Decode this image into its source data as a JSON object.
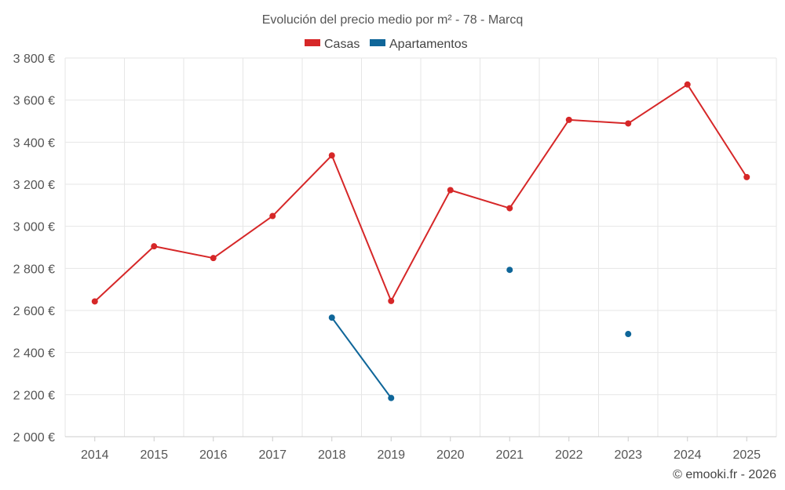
{
  "chart_data": {
    "type": "line",
    "title": "Evolución del precio medio por m² - 78 - Marcq",
    "xlabel": "",
    "ylabel": "",
    "x": [
      "2014",
      "2015",
      "2016",
      "2017",
      "2018",
      "2019",
      "2020",
      "2021",
      "2022",
      "2023",
      "2024",
      "2025"
    ],
    "yticks": [
      "2 000 €",
      "2 200 €",
      "2 400 €",
      "2 600 €",
      "2 800 €",
      "3 000 €",
      "3 200 €",
      "3 400 €",
      "3 600 €",
      "3 800 €"
    ],
    "ylim": [
      2000,
      3800
    ],
    "grid": true,
    "legend_position": "top-center",
    "series": [
      {
        "name": "Casas",
        "color": "#d62728",
        "values": [
          2643,
          2905,
          2849,
          3049,
          3337,
          2645,
          3172,
          3086,
          3506,
          3489,
          3674,
          3234
        ]
      },
      {
        "name": "Apartamentos",
        "color": "#0f6699",
        "values": [
          null,
          null,
          null,
          null,
          2566,
          2184,
          null,
          2793,
          null,
          2488,
          null,
          null
        ]
      }
    ]
  },
  "credit": "© emooki.fr - 2026"
}
